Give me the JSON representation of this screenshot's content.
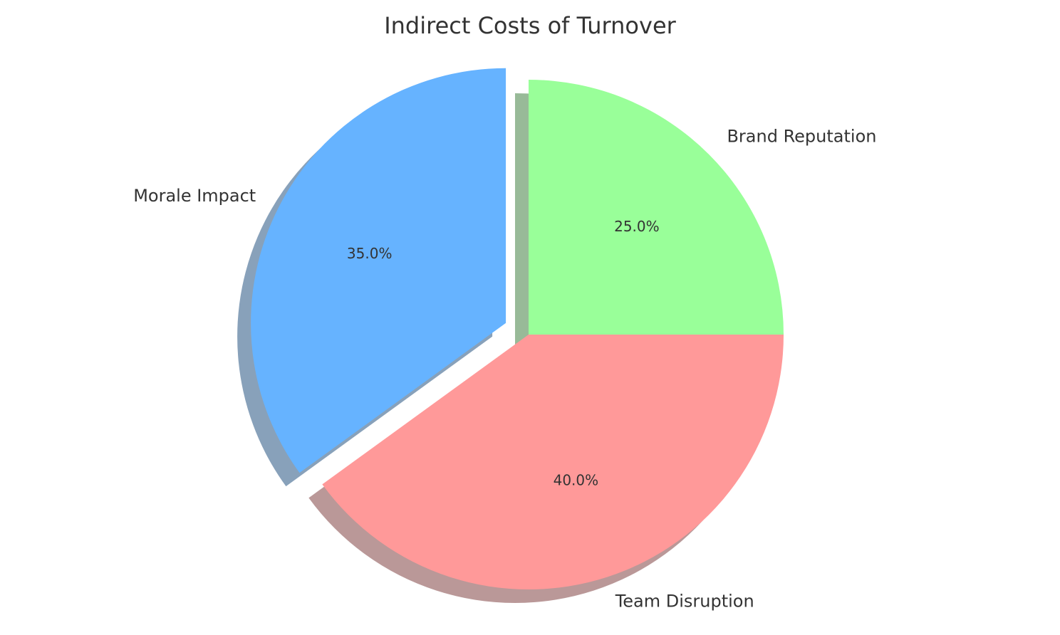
{
  "chart_data": {
    "type": "pie",
    "title": "Indirect Costs of Turnover",
    "start_angle_deg": 0,
    "direction": "counterclockwise",
    "shadow": true,
    "slices": [
      {
        "label": "Brand Reputation",
        "value": 25.0,
        "pct_label": "25.0%",
        "color": "#99ff99",
        "exploded": false
      },
      {
        "label": "Morale Impact",
        "value": 35.0,
        "pct_label": "35.0%",
        "color": "#66b3ff",
        "exploded": true
      },
      {
        "label": "Team Disruption",
        "value": 40.0,
        "pct_label": "40.0%",
        "color": "#ff9999",
        "exploded": false
      }
    ]
  }
}
